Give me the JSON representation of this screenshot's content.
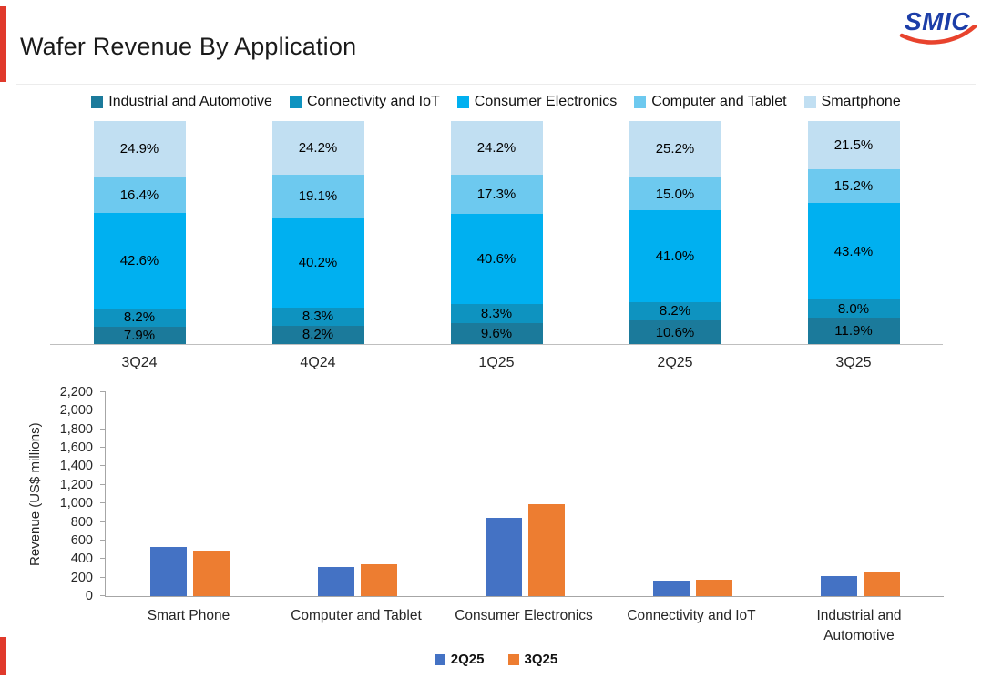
{
  "logo": {
    "text": "SMIC"
  },
  "title": "Wafer Revenue By Application",
  "colors": {
    "accent_red": "#E0392B",
    "logo_blue": "#1C3EA8",
    "axis_gray": "#A6A6A6"
  },
  "chart_data": [
    {
      "type": "bar",
      "subtype": "stacked-percent",
      "categories": [
        "3Q24",
        "4Q24",
        "1Q25",
        "2Q25",
        "3Q25"
      ],
      "series": [
        {
          "name": "Industrial and Automotive",
          "color": "#1B7A9B",
          "values": [
            7.9,
            8.2,
            9.6,
            10.6,
            11.9
          ]
        },
        {
          "name": "Connectivity and IoT",
          "color": "#0E93C0",
          "values": [
            8.2,
            8.3,
            8.3,
            8.2,
            8.0
          ]
        },
        {
          "name": "Consumer Electronics",
          "color": "#00B0F0",
          "values": [
            42.6,
            40.2,
            40.6,
            41.0,
            43.4
          ]
        },
        {
          "name": "Computer and Tablet",
          "color": "#6DC9EF",
          "values": [
            16.4,
            19.1,
            17.3,
            15.0,
            15.2
          ]
        },
        {
          "name": "Smartphone",
          "color": "#C1DFF2",
          "values": [
            24.9,
            24.2,
            24.2,
            25.2,
            21.5
          ]
        }
      ],
      "value_suffix": "%",
      "ylim": [
        0,
        100
      ],
      "legend_position": "top",
      "grid": false
    },
    {
      "type": "bar",
      "subtype": "grouped",
      "categories": [
        "Smart Phone",
        "Computer and Tablet",
        "Consumer Electronics",
        "Connectivity and IoT",
        "Industrial and Automotive"
      ],
      "series": [
        {
          "name": "2Q25",
          "color": "#4472C4",
          "values": [
            530,
            315,
            850,
            170,
            220
          ]
        },
        {
          "name": "3Q25",
          "color": "#ED7D31",
          "values": [
            490,
            345,
            990,
            180,
            270
          ]
        }
      ],
      "ylabel": "Revenue (US$ millions)",
      "ylim": [
        0,
        2200
      ],
      "ytick_step": 200,
      "ytick_labels": [
        "0",
        "200",
        "400",
        "600",
        "800",
        "1,000",
        "1,200",
        "1,400",
        "1,600",
        "1,800",
        "2,000",
        "2,200"
      ],
      "legend_position": "bottom",
      "grid": false
    }
  ]
}
